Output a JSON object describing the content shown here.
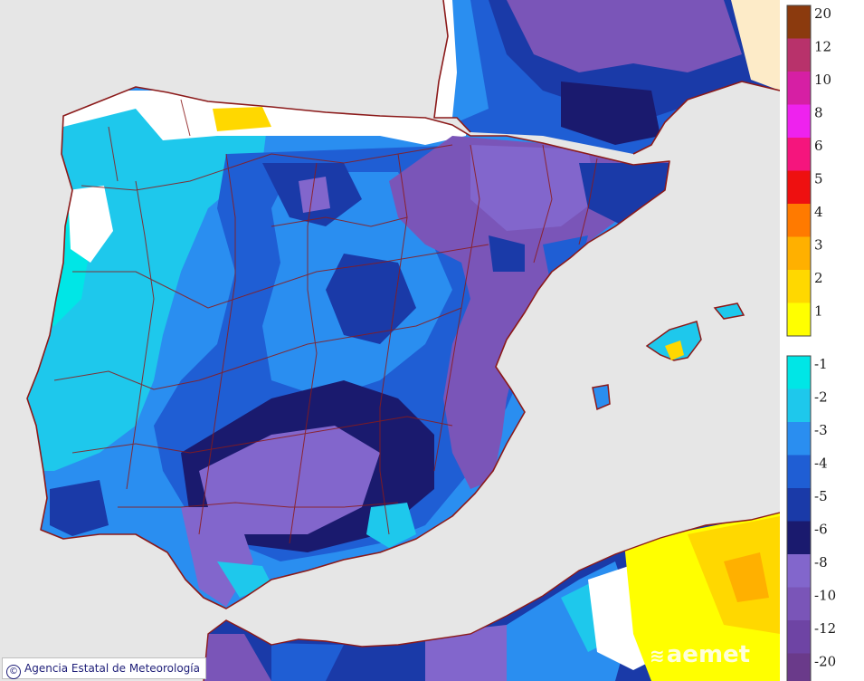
{
  "credit": {
    "symbol": "©",
    "text": "Agencia Estatal de Meteorología"
  },
  "logo": {
    "text": "aemet",
    "mark": "≋"
  },
  "colors": {
    "sea": "#e6e6e6",
    "land_none": "#ffffff",
    "border": "#8b1a1a"
  },
  "legend": {
    "positive": [
      {
        "label": "20",
        "color": "#8b3a0e"
      },
      {
        "label": "12",
        "color": "#b8326b"
      },
      {
        "label": "10",
        "color": "#d61fa4"
      },
      {
        "label": "8",
        "color": "#ee22ee"
      },
      {
        "label": "6",
        "color": "#f5157d"
      },
      {
        "label": "5",
        "color": "#ee1010"
      },
      {
        "label": "4",
        "color": "#ff7a00"
      },
      {
        "label": "3",
        "color": "#ffb000"
      },
      {
        "label": "2",
        "color": "#ffd800"
      },
      {
        "label": "1",
        "color": "#ffff00"
      }
    ],
    "negative": [
      {
        "label": "-1",
        "color": "#00e6e6"
      },
      {
        "label": "-2",
        "color": "#1ec8ec"
      },
      {
        "label": "-3",
        "color": "#2a8ef0"
      },
      {
        "label": "-4",
        "color": "#1f5ed4"
      },
      {
        "label": "-5",
        "color": "#1a3aa8"
      },
      {
        "label": "-6",
        "color": "#1a1a6e"
      },
      {
        "label": "-8",
        "color": "#8266cc"
      },
      {
        "label": "-10",
        "color": "#7a55b8"
      },
      {
        "label": "-12",
        "color": "#6e44a4"
      },
      {
        "label": "-20",
        "color": "#6a3a8a"
      }
    ]
  }
}
